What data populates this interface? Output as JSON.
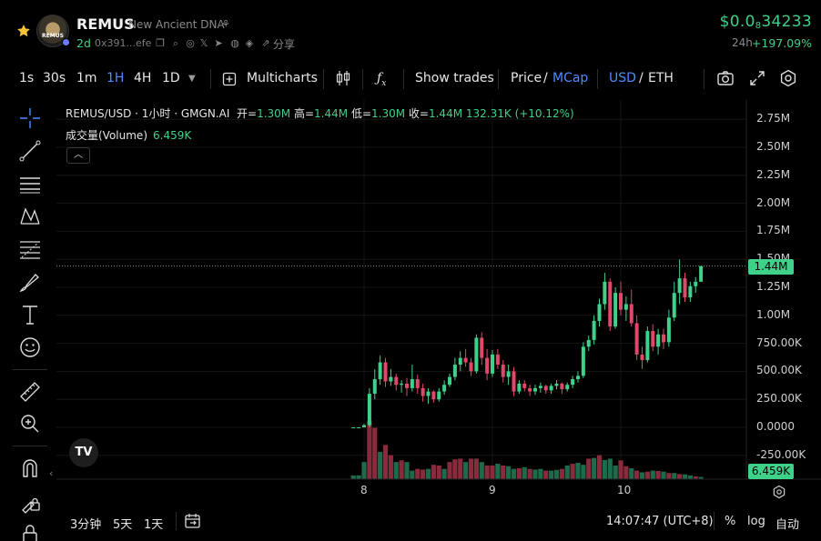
{
  "header": {
    "symbol": "REMUS",
    "name": "New Ancient DNA",
    "avatar_text": "REMUS",
    "age": "2d",
    "address": "0x391...efe",
    "share_label": "分享",
    "price_prefix": "$0.0",
    "price_sub": "8",
    "price_rest": "34233",
    "change_period": "24h",
    "change_value": "+197.09%"
  },
  "toolbar": {
    "intervals": [
      "1s",
      "30s",
      "1m",
      "1H",
      "4H",
      "1D"
    ],
    "active_interval": "1H",
    "multicharts": "Multicharts",
    "show_trades": "Show trades",
    "price": "Price",
    "mcap": "MCap",
    "usd": "USD",
    "eth": "ETH",
    "slash": "/"
  },
  "chart_legend": {
    "title": "REMUS/USD · 1小时 · GMGN.AI",
    "open_label": "开=",
    "open": "1.30M",
    "high_label": "高=",
    "high": "1.44M",
    "low_label": "低=",
    "low": "1.30M",
    "close_label": "收=",
    "close": "1.44M",
    "change": "132.31K (+10.12%)",
    "volume_label": "成交量(Volume)",
    "volume_value": "6.459K",
    "logo": "TV"
  },
  "chart_data": {
    "type": "candlestick",
    "title": "REMUS/USD · 1小时 · GMGN.AI",
    "y_ticks": [
      "2.75M",
      "2.50M",
      "2.25M",
      "2.00M",
      "1.75M",
      "1.50M",
      "1.25M",
      "1.00M",
      "750.00K",
      "500.00K",
      "250.00K",
      "0.0000",
      "-250.00K"
    ],
    "y_tick_values": [
      2750000,
      2500000,
      2250000,
      2000000,
      1750000,
      1500000,
      1250000,
      1000000,
      750000,
      500000,
      250000,
      0,
      -250000
    ],
    "x_ticks": [
      "8",
      "9",
      "10"
    ],
    "last_price_label": "1.44M",
    "last_price": 1440000,
    "last_volume_label": "6.459K",
    "last_volume": 6459,
    "ylim": [
      -250000,
      2750000
    ],
    "up_color": "#3fd08a",
    "down_color": "#e0486a",
    "candles": [
      [
        0,
        0,
        0,
        0
      ],
      [
        0,
        0,
        0,
        0
      ],
      [
        0,
        30000,
        0,
        20000
      ],
      [
        20000,
        350000,
        0,
        300000
      ],
      [
        300000,
        520000,
        250000,
        430000
      ],
      [
        430000,
        640000,
        380000,
        580000
      ],
      [
        580000,
        620000,
        360000,
        410000
      ],
      [
        410000,
        520000,
        370000,
        450000
      ],
      [
        450000,
        480000,
        330000,
        380000
      ],
      [
        380000,
        420000,
        310000,
        390000
      ],
      [
        390000,
        440000,
        280000,
        350000
      ],
      [
        350000,
        560000,
        320000,
        430000
      ],
      [
        430000,
        470000,
        300000,
        350000
      ],
      [
        350000,
        390000,
        230000,
        280000
      ],
      [
        280000,
        350000,
        210000,
        320000
      ],
      [
        320000,
        330000,
        220000,
        250000
      ],
      [
        250000,
        350000,
        230000,
        320000
      ],
      [
        320000,
        420000,
        290000,
        380000
      ],
      [
        380000,
        480000,
        360000,
        450000
      ],
      [
        450000,
        620000,
        420000,
        560000
      ],
      [
        560000,
        680000,
        500000,
        620000
      ],
      [
        620000,
        700000,
        540000,
        580000
      ],
      [
        580000,
        620000,
        460000,
        500000
      ],
      [
        500000,
        830000,
        480000,
        800000
      ],
      [
        800000,
        850000,
        560000,
        620000
      ],
      [
        620000,
        700000,
        420000,
        480000
      ],
      [
        480000,
        690000,
        450000,
        650000
      ],
      [
        650000,
        700000,
        520000,
        560000
      ],
      [
        560000,
        600000,
        400000,
        450000
      ],
      [
        450000,
        560000,
        380000,
        500000
      ],
      [
        500000,
        540000,
        280000,
        320000
      ],
      [
        320000,
        420000,
        300000,
        390000
      ],
      [
        390000,
        420000,
        320000,
        350000
      ],
      [
        350000,
        380000,
        280000,
        320000
      ],
      [
        320000,
        380000,
        290000,
        350000
      ],
      [
        350000,
        400000,
        310000,
        370000
      ],
      [
        370000,
        380000,
        300000,
        330000
      ],
      [
        330000,
        390000,
        300000,
        370000
      ],
      [
        370000,
        420000,
        340000,
        390000
      ],
      [
        390000,
        400000,
        300000,
        340000
      ],
      [
        340000,
        400000,
        320000,
        380000
      ],
      [
        380000,
        460000,
        350000,
        430000
      ],
      [
        430000,
        500000,
        400000,
        460000
      ],
      [
        460000,
        760000,
        440000,
        720000
      ],
      [
        720000,
        820000,
        680000,
        780000
      ],
      [
        780000,
        1000000,
        740000,
        950000
      ],
      [
        950000,
        1150000,
        900000,
        1100000
      ],
      [
        1100000,
        1380000,
        1050000,
        1300000
      ],
      [
        1300000,
        1330000,
        860000,
        900000
      ],
      [
        900000,
        1250000,
        880000,
        1200000
      ],
      [
        1200000,
        1300000,
        1000000,
        1050000
      ],
      [
        1050000,
        1170000,
        950000,
        1100000
      ],
      [
        1100000,
        1230000,
        900000,
        930000
      ],
      [
        930000,
        1000000,
        600000,
        650000
      ],
      [
        650000,
        720000,
        520000,
        600000
      ],
      [
        600000,
        900000,
        580000,
        860000
      ],
      [
        860000,
        920000,
        680000,
        720000
      ],
      [
        720000,
        880000,
        650000,
        830000
      ],
      [
        830000,
        880000,
        700000,
        760000
      ],
      [
        760000,
        1050000,
        720000,
        980000
      ],
      [
        980000,
        1300000,
        950000,
        1200000
      ],
      [
        1200000,
        1500000,
        1100000,
        1330000
      ],
      [
        1330000,
        1380000,
        1120000,
        1160000
      ],
      [
        1160000,
        1300000,
        1120000,
        1260000
      ],
      [
        1260000,
        1340000,
        1200000,
        1300000
      ],
      [
        1300000,
        1440000,
        1300000,
        1440000
      ]
    ],
    "volumes": [
      [
        11000,
        1
      ],
      [
        11000,
        1
      ],
      [
        50000,
        1
      ],
      [
        170000,
        0
      ],
      [
        150000,
        0
      ],
      [
        80000,
        1
      ],
      [
        100000,
        0
      ],
      [
        70000,
        0
      ],
      [
        50000,
        1
      ],
      [
        55000,
        0
      ],
      [
        50000,
        1
      ],
      [
        25000,
        1
      ],
      [
        30000,
        0
      ],
      [
        28000,
        0
      ],
      [
        30000,
        1
      ],
      [
        42000,
        0
      ],
      [
        40000,
        0
      ],
      [
        30000,
        1
      ],
      [
        50000,
        0
      ],
      [
        58000,
        0
      ],
      [
        60000,
        0
      ],
      [
        50000,
        1
      ],
      [
        60000,
        0
      ],
      [
        60000,
        0
      ],
      [
        50000,
        1
      ],
      [
        40000,
        0
      ],
      [
        40000,
        0
      ],
      [
        45000,
        1
      ],
      [
        40000,
        0
      ],
      [
        38000,
        1
      ],
      [
        30000,
        1
      ],
      [
        32000,
        0
      ],
      [
        35000,
        1
      ],
      [
        30000,
        0
      ],
      [
        28000,
        1
      ],
      [
        30000,
        1
      ],
      [
        25000,
        0
      ],
      [
        25000,
        1
      ],
      [
        27000,
        1
      ],
      [
        30000,
        0
      ],
      [
        40000,
        1
      ],
      [
        45000,
        0
      ],
      [
        48000,
        1
      ],
      [
        42000,
        1
      ],
      [
        60000,
        0
      ],
      [
        62000,
        1
      ],
      [
        70000,
        0
      ],
      [
        56000,
        1
      ],
      [
        60000,
        1
      ],
      [
        40000,
        1
      ],
      [
        55000,
        0
      ],
      [
        38000,
        0
      ],
      [
        32000,
        1
      ],
      [
        25000,
        0
      ],
      [
        20000,
        1
      ],
      [
        22000,
        0
      ],
      [
        25000,
        1
      ],
      [
        24000,
        0
      ],
      [
        22000,
        1
      ],
      [
        18000,
        0
      ],
      [
        18000,
        1
      ],
      [
        15000,
        0
      ],
      [
        14000,
        1
      ],
      [
        11000,
        1
      ],
      [
        8000,
        0
      ],
      [
        6459,
        1
      ]
    ]
  },
  "bottom": {
    "ranges": [
      "3分钟",
      "5天",
      "1天"
    ],
    "time": "14:07:47 (UTC+8)",
    "pct": "%",
    "log": "log",
    "auto": "自动"
  }
}
